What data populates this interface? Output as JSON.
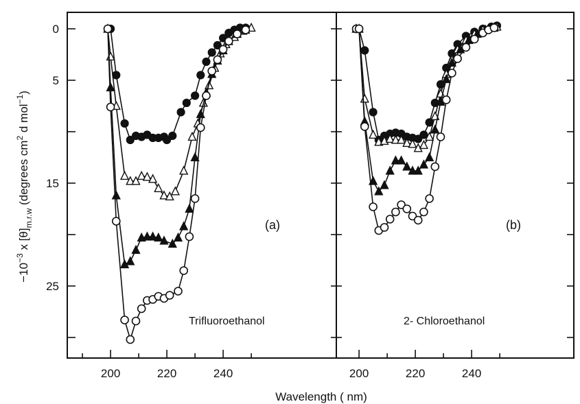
{
  "figure": {
    "xlabel": "Wavelength ( nm)",
    "ylabel_prefix": "−10",
    "ylabel_exp": "−3",
    "ylabel_mid": " x [θ]",
    "ylabel_sub": "m.r.w",
    "ylabel_units_open": " (degrees cm",
    "ylabel_units_sq": "2",
    "ylabel_units_mid": " d mol",
    "ylabel_units_exp": "−1",
    "ylabel_units_close": ")"
  },
  "chart_data": [
    {
      "type": "line",
      "panel_label": "(a)",
      "annotation": "Trifluoroethanol",
      "xlim": [
        190,
        252
      ],
      "ylim": [
        0,
        30
      ],
      "y_inverted": true,
      "xticks": [
        200,
        220,
        240
      ],
      "yticks": [
        0,
        5,
        15,
        25
      ],
      "yticks_minor": [
        10,
        20,
        30
      ],
      "series": [
        {
          "marker": "filled-circle",
          "x": [
            199,
            200,
            202,
            205,
            207,
            209,
            211,
            213,
            215,
            217,
            219,
            220,
            222,
            225,
            227,
            230,
            232,
            234,
            236,
            238,
            240,
            242,
            244,
            246,
            248
          ],
          "y": [
            0,
            0,
            4.5,
            9.2,
            10.8,
            10.4,
            10.5,
            10.3,
            10.6,
            10.6,
            10.5,
            10.8,
            10.4,
            8.1,
            7.2,
            6.5,
            4.5,
            3.2,
            2.3,
            1.6,
            0.9,
            0.4,
            0.1,
            -0.1,
            -0.1
          ]
        },
        {
          "marker": "open-triangle",
          "x": [
            199,
            200,
            202,
            205,
            207,
            209,
            211,
            213,
            215,
            217,
            219,
            221,
            223,
            226,
            229,
            231,
            233,
            235,
            237,
            239,
            241,
            244,
            247,
            250
          ],
          "y": [
            0,
            2.7,
            7.5,
            14.3,
            14.8,
            14.8,
            14.3,
            14.4,
            14.6,
            15.5,
            16.2,
            16.3,
            15.8,
            13.8,
            10.5,
            9.2,
            7.2,
            5.5,
            3.8,
            2.4,
            1.5,
            0.8,
            0.2,
            -0.1
          ]
        },
        {
          "marker": "filled-triangle",
          "x": [
            199,
            200,
            202,
            205,
            207,
            209,
            211,
            213,
            215,
            217,
            219,
            222,
            224,
            226,
            228,
            230,
            232,
            234,
            236,
            238,
            240,
            242,
            245,
            248
          ],
          "y": [
            0,
            5.7,
            16.2,
            22.9,
            22.6,
            21.5,
            20.3,
            20.2,
            20.2,
            20.3,
            20.6,
            20.9,
            20.3,
            19.2,
            17.5,
            12.5,
            8.3,
            6.2,
            4.4,
            3.1,
            2.1,
            1.2,
            0.5,
            0.1
          ]
        },
        {
          "marker": "open-circle",
          "x": [
            199,
            200,
            202,
            205,
            207,
            209,
            211,
            213,
            215,
            217,
            219,
            221,
            224,
            226,
            228,
            230,
            232,
            234,
            236,
            238,
            240,
            242,
            245,
            248
          ],
          "y": [
            0,
            7.6,
            18.7,
            28.3,
            30.2,
            28.4,
            27.2,
            26.4,
            26.3,
            26.0,
            26.2,
            25.9,
            25.5,
            23.5,
            20.2,
            16.5,
            9.6,
            6.5,
            4.1,
            3.0,
            2.0,
            1.2,
            0.5,
            0.1
          ]
        }
      ]
    },
    {
      "type": "line",
      "panel_label": "(b)",
      "annotation": "2- Chloroethanol",
      "xlim": [
        190,
        252
      ],
      "ylim": [
        0,
        30
      ],
      "y_inverted": true,
      "xticks": [
        200,
        220,
        240
      ],
      "yticks": [],
      "yticks_minor": [],
      "series": [
        {
          "marker": "filled-circle",
          "x": [
            199,
            200,
            202,
            205,
            207,
            209,
            211,
            213,
            215,
            217,
            219,
            221,
            223,
            225,
            227,
            229,
            231,
            233,
            235,
            238,
            241,
            244,
            247,
            249
          ],
          "y": [
            0,
            0,
            2.1,
            8.1,
            10.8,
            10.4,
            10.2,
            10.1,
            10.2,
            10.5,
            10.6,
            10.7,
            10.3,
            9.1,
            7.2,
            5.4,
            3.8,
            2.4,
            1.5,
            0.7,
            0.3,
            0,
            -0.2,
            -0.3
          ]
        },
        {
          "marker": "open-triangle",
          "x": [
            199,
            200,
            202,
            205,
            207,
            209,
            211,
            213,
            215,
            217,
            219,
            221,
            223,
            225,
            227,
            229,
            231,
            233,
            235,
            238,
            241,
            244,
            247,
            249
          ],
          "y": [
            0,
            0,
            6.8,
            10.3,
            11.0,
            10.9,
            10.7,
            10.8,
            10.8,
            11.1,
            11.2,
            11.6,
            11.3,
            10.5,
            8.5,
            6.3,
            4.4,
            3.0,
            2.0,
            1.1,
            0.5,
            0.1,
            -0.1,
            -0.2
          ]
        },
        {
          "marker": "filled-triangle",
          "x": [
            199,
            200,
            202,
            205,
            207,
            209,
            211,
            213,
            215,
            217,
            219,
            221,
            223,
            225,
            227,
            229,
            231,
            233,
            236,
            239,
            242,
            245,
            248
          ],
          "y": [
            0,
            0,
            9.0,
            14.8,
            15.8,
            15.2,
            13.8,
            12.8,
            12.8,
            13.4,
            13.8,
            13.8,
            13.2,
            12.5,
            9.8,
            7.1,
            4.9,
            3.3,
            2.0,
            1.1,
            0.5,
            0.1,
            -0.1
          ]
        },
        {
          "marker": "open-circle",
          "x": [
            199,
            200,
            202,
            205,
            207,
            209,
            211,
            213,
            215,
            217,
            219,
            221,
            223,
            225,
            227,
            229,
            231,
            233,
            235,
            238,
            241,
            244,
            246,
            248
          ],
          "y": [
            0,
            0,
            9.5,
            17.3,
            19.6,
            19.3,
            18.5,
            17.8,
            17.1,
            17.5,
            18.2,
            18.6,
            17.8,
            16.5,
            13.4,
            10.5,
            6.9,
            4.3,
            2.9,
            1.8,
            1.0,
            0.4,
            0.1,
            -0.1
          ]
        }
      ]
    }
  ]
}
